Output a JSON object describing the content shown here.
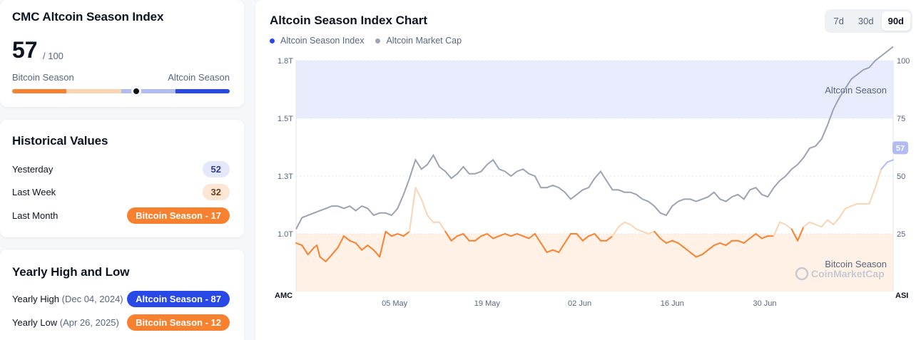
{
  "index_card": {
    "title": "CMC Altcoin Season Index",
    "value": "57",
    "max": "/ 100",
    "value_fraction": 0.57,
    "left_label": "Bitcoin Season",
    "right_label": "Altcoin Season"
  },
  "historical": {
    "title": "Historical Values",
    "rows": [
      {
        "label": "Yesterday",
        "value": "52"
      },
      {
        "label": "Last Week",
        "value": "32"
      },
      {
        "label": "Last Month",
        "value": "Bitcoin Season - 17"
      }
    ]
  },
  "yearly": {
    "title": "Yearly High and Low",
    "rows": [
      {
        "label": "Yearly High",
        "date": "(Dec 04, 2024)",
        "value": "Altcoin Season - 87"
      },
      {
        "label": "Yearly Low",
        "date": "(Apr 26, 2025)",
        "value": "Bitcoin Season - 12"
      }
    ]
  },
  "chart_card": {
    "title": "Altcoin Season Index Chart",
    "tabs": [
      "7d",
      "30d",
      "90d"
    ],
    "active_tab": "90d"
  },
  "colors": {
    "bitcoin": "#f7812e",
    "bitcoin_light": "#fbd4b3",
    "altcoin": "#2948e8",
    "altcoin_light": "#b3bcf2",
    "marketcap": "#9ba3b3",
    "altcoin_band": "#e9ecfc",
    "bitcoin_band": "#fff1e6"
  },
  "chart_data": {
    "type": "line",
    "legend": [
      "Altcoin Season Index",
      "Altcoin Market Cap"
    ],
    "left_axis_corner": "AMC",
    "right_axis_corner": "ASI",
    "left_ticks": [
      "1.8T",
      "1.5T",
      "1.3T",
      "1.0T"
    ],
    "right_ticks": [
      "100",
      "75",
      "50",
      "25"
    ],
    "x_ticks": [
      {
        "label": "05 May",
        "pos": 0.165
      },
      {
        "label": "19 May",
        "pos": 0.32
      },
      {
        "label": "02 Jun",
        "pos": 0.475
      },
      {
        "label": "16 Jun",
        "pos": 0.63
      },
      {
        "label": "30 Jun",
        "pos": 0.785
      }
    ],
    "zone_labels": {
      "altcoin": "Altcoin Season",
      "bitcoin": "Bitcoin Season"
    },
    "zones": {
      "altcoin_from": 75,
      "bitcoin_to": 25
    },
    "current_value_label": "57",
    "watermark": "CoinMarketCap",
    "asi_range": [
      0,
      100
    ],
    "amc_range_norm": [
      0,
      1
    ],
    "asi_series": [
      [
        0.0,
        21
      ],
      [
        0.01,
        20
      ],
      [
        0.02,
        16
      ],
      [
        0.03,
        19
      ],
      [
        0.035,
        20
      ],
      [
        0.04,
        15
      ],
      [
        0.05,
        13
      ],
      [
        0.06,
        16
      ],
      [
        0.07,
        19
      ],
      [
        0.08,
        24
      ],
      [
        0.09,
        22
      ],
      [
        0.1,
        21
      ],
      [
        0.11,
        18
      ],
      [
        0.12,
        20
      ],
      [
        0.13,
        18
      ],
      [
        0.14,
        15
      ],
      [
        0.15,
        26
      ],
      [
        0.16,
        24
      ],
      [
        0.17,
        25
      ],
      [
        0.18,
        24
      ],
      [
        0.19,
        26
      ],
      [
        0.2,
        45
      ],
      [
        0.21,
        40
      ],
      [
        0.22,
        33
      ],
      [
        0.23,
        30
      ],
      [
        0.24,
        30
      ],
      [
        0.25,
        26
      ],
      [
        0.26,
        22
      ],
      [
        0.27,
        24
      ],
      [
        0.28,
        25
      ],
      [
        0.29,
        22
      ],
      [
        0.3,
        22
      ],
      [
        0.31,
        24
      ],
      [
        0.32,
        25
      ],
      [
        0.33,
        23
      ],
      [
        0.34,
        24
      ],
      [
        0.35,
        25
      ],
      [
        0.36,
        24
      ],
      [
        0.37,
        25
      ],
      [
        0.38,
        24
      ],
      [
        0.39,
        23
      ],
      [
        0.4,
        25
      ],
      [
        0.41,
        21
      ],
      [
        0.42,
        17
      ],
      [
        0.43,
        18
      ],
      [
        0.44,
        17
      ],
      [
        0.45,
        21
      ],
      [
        0.46,
        25
      ],
      [
        0.47,
        25
      ],
      [
        0.48,
        22
      ],
      [
        0.49,
        24
      ],
      [
        0.5,
        25
      ],
      [
        0.51,
        22
      ],
      [
        0.52,
        22
      ],
      [
        0.53,
        24
      ],
      [
        0.54,
        28
      ],
      [
        0.55,
        30
      ],
      [
        0.56,
        29
      ],
      [
        0.57,
        27
      ],
      [
        0.58,
        26
      ],
      [
        0.59,
        25
      ],
      [
        0.6,
        26
      ],
      [
        0.61,
        23
      ],
      [
        0.62,
        21
      ],
      [
        0.63,
        22
      ],
      [
        0.64,
        21
      ],
      [
        0.65,
        19
      ],
      [
        0.66,
        17
      ],
      [
        0.67,
        15
      ],
      [
        0.68,
        16
      ],
      [
        0.69,
        18
      ],
      [
        0.7,
        20
      ],
      [
        0.71,
        21
      ],
      [
        0.72,
        20
      ],
      [
        0.73,
        22
      ],
      [
        0.74,
        22
      ],
      [
        0.75,
        21
      ],
      [
        0.76,
        23
      ],
      [
        0.77,
        25
      ],
      [
        0.78,
        23
      ],
      [
        0.79,
        24
      ],
      [
        0.8,
        24
      ],
      [
        0.81,
        30
      ],
      [
        0.82,
        29
      ],
      [
        0.83,
        27
      ],
      [
        0.84,
        22
      ],
      [
        0.85,
        28
      ],
      [
        0.86,
        30
      ],
      [
        0.87,
        29
      ],
      [
        0.88,
        28
      ],
      [
        0.89,
        31
      ],
      [
        0.9,
        29
      ],
      [
        0.91,
        32
      ],
      [
        0.92,
        36
      ],
      [
        0.93,
        37
      ],
      [
        0.94,
        38
      ],
      [
        0.95,
        38
      ],
      [
        0.96,
        38
      ],
      [
        0.97,
        45
      ],
      [
        0.98,
        53
      ],
      [
        0.99,
        56
      ],
      [
        1.0,
        57
      ]
    ],
    "amc_series": [
      [
        0.0,
        0.27
      ],
      [
        0.01,
        0.32
      ],
      [
        0.02,
        0.33
      ],
      [
        0.03,
        0.34
      ],
      [
        0.04,
        0.35
      ],
      [
        0.05,
        0.36
      ],
      [
        0.06,
        0.37
      ],
      [
        0.07,
        0.37
      ],
      [
        0.08,
        0.36
      ],
      [
        0.09,
        0.37
      ],
      [
        0.1,
        0.35
      ],
      [
        0.11,
        0.37
      ],
      [
        0.12,
        0.36
      ],
      [
        0.13,
        0.33
      ],
      [
        0.14,
        0.34
      ],
      [
        0.15,
        0.34
      ],
      [
        0.16,
        0.33
      ],
      [
        0.17,
        0.36
      ],
      [
        0.18,
        0.42
      ],
      [
        0.19,
        0.49
      ],
      [
        0.2,
        0.57
      ],
      [
        0.21,
        0.53
      ],
      [
        0.22,
        0.55
      ],
      [
        0.23,
        0.59
      ],
      [
        0.24,
        0.54
      ],
      [
        0.25,
        0.52
      ],
      [
        0.26,
        0.49
      ],
      [
        0.27,
        0.51
      ],
      [
        0.28,
        0.54
      ],
      [
        0.29,
        0.51
      ],
      [
        0.3,
        0.51
      ],
      [
        0.31,
        0.52
      ],
      [
        0.32,
        0.55
      ],
      [
        0.33,
        0.57
      ],
      [
        0.34,
        0.53
      ],
      [
        0.35,
        0.52
      ],
      [
        0.36,
        0.5
      ],
      [
        0.37,
        0.52
      ],
      [
        0.38,
        0.53
      ],
      [
        0.39,
        0.51
      ],
      [
        0.4,
        0.5
      ],
      [
        0.41,
        0.45
      ],
      [
        0.42,
        0.45
      ],
      [
        0.43,
        0.46
      ],
      [
        0.44,
        0.45
      ],
      [
        0.45,
        0.43
      ],
      [
        0.46,
        0.4
      ],
      [
        0.47,
        0.42
      ],
      [
        0.48,
        0.44
      ],
      [
        0.49,
        0.45
      ],
      [
        0.5,
        0.49
      ],
      [
        0.51,
        0.52
      ],
      [
        0.52,
        0.48
      ],
      [
        0.53,
        0.44
      ],
      [
        0.54,
        0.44
      ],
      [
        0.55,
        0.43
      ],
      [
        0.56,
        0.43
      ],
      [
        0.57,
        0.42
      ],
      [
        0.58,
        0.4
      ],
      [
        0.59,
        0.39
      ],
      [
        0.6,
        0.37
      ],
      [
        0.61,
        0.34
      ],
      [
        0.62,
        0.33
      ],
      [
        0.63,
        0.37
      ],
      [
        0.64,
        0.39
      ],
      [
        0.65,
        0.4
      ],
      [
        0.66,
        0.4
      ],
      [
        0.67,
        0.39
      ],
      [
        0.68,
        0.4
      ],
      [
        0.69,
        0.41
      ],
      [
        0.7,
        0.43
      ],
      [
        0.71,
        0.4
      ],
      [
        0.72,
        0.39
      ],
      [
        0.73,
        0.41
      ],
      [
        0.74,
        0.42
      ],
      [
        0.75,
        0.4
      ],
      [
        0.76,
        0.44
      ],
      [
        0.77,
        0.45
      ],
      [
        0.78,
        0.42
      ],
      [
        0.79,
        0.41
      ],
      [
        0.8,
        0.45
      ],
      [
        0.81,
        0.48
      ],
      [
        0.82,
        0.5
      ],
      [
        0.83,
        0.53
      ],
      [
        0.84,
        0.55
      ],
      [
        0.85,
        0.58
      ],
      [
        0.86,
        0.62
      ],
      [
        0.87,
        0.63
      ],
      [
        0.88,
        0.66
      ],
      [
        0.89,
        0.72
      ],
      [
        0.9,
        0.79
      ],
      [
        0.91,
        0.84
      ],
      [
        0.92,
        0.88
      ],
      [
        0.93,
        0.92
      ],
      [
        0.94,
        0.94
      ],
      [
        0.95,
        0.96
      ],
      [
        0.96,
        0.97
      ],
      [
        0.97,
        1.0
      ],
      [
        0.98,
        1.02
      ],
      [
        0.99,
        1.04
      ],
      [
        1.0,
        1.06
      ]
    ]
  }
}
